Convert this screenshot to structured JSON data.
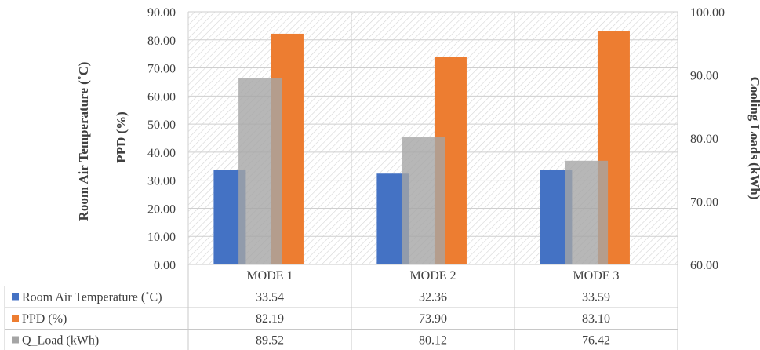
{
  "chart_data": {
    "type": "bar",
    "categories": [
      "MODE 1",
      "MODE 2",
      "MODE 3"
    ],
    "series": [
      {
        "name": "Room Air Temperature (˚C)",
        "values": [
          33.54,
          32.36,
          33.59
        ],
        "axis": "left",
        "color": "#4472C4"
      },
      {
        "name": "PPD (%)",
        "values": [
          82.19,
          73.9,
          83.1
        ],
        "axis": "left",
        "color": "#ED7D31"
      },
      {
        "name": "Q_Load (kWh)",
        "values": [
          89.52,
          80.12,
          76.42
        ],
        "axis": "right",
        "color": "#A5A5A5"
      }
    ],
    "table_values": [
      [
        "33.54",
        "32.36",
        "33.59"
      ],
      [
        "82.19",
        "73.90",
        "83.10"
      ],
      [
        "89.52",
        "80.12",
        "76.42"
      ]
    ],
    "y_left": {
      "ticks": [
        "0.00",
        "10.00",
        "20.00",
        "30.00",
        "40.00",
        "50.00",
        "60.00",
        "70.00",
        "80.00",
        "90.00"
      ],
      "range": [
        0,
        90
      ],
      "labels": [
        "Room Air Temperature (˚C)",
        "PPD (%)"
      ]
    },
    "y_right": {
      "ticks": [
        "60.00",
        "70.00",
        "80.00",
        "90.00",
        "100.00"
      ],
      "range": [
        60,
        100
      ],
      "label": "Cooling Loads (kWh)"
    },
    "grid": true,
    "legend": "data-table"
  }
}
